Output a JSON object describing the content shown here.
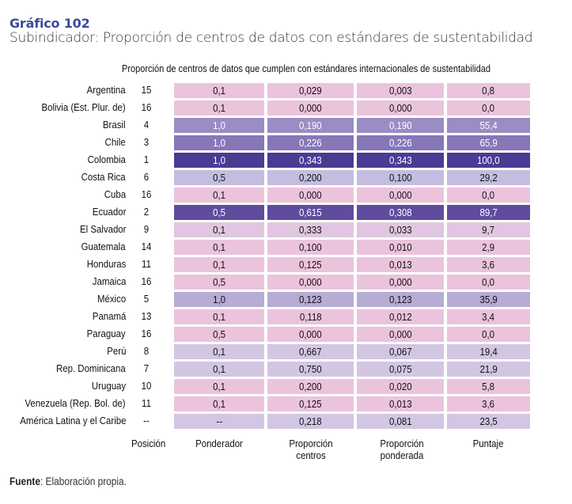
{
  "header": {
    "figure_label": "Gráfico 102",
    "subtitle": "Subindicador: Proporción de centros de datos con estándares de sustentabilidad"
  },
  "footer": {
    "source_label": "Fuente",
    "source_text": ": Elaboración propia."
  },
  "colors": {
    "title": "#3c4a9c",
    "pink": "#ebc3dd",
    "light_pink_lilac": "#e0c6e0",
    "lilac": "#d2c6e2",
    "light_violet": "#c4bddf",
    "mid_violet": "#b6acd4",
    "violet": "#9a8cc4",
    "deep_violet": "#8777b8",
    "dark_violet": "#5f4c9e",
    "darkest_violet": "#4a3b95"
  },
  "chart_data": {
    "type": "table",
    "title": "Proporción de centros de datos que cumplen con estándares internacionales de sustentabilidad",
    "columns": [
      "Posición",
      "Ponderador",
      "Proporción centros",
      "Proporción ponderada",
      "Puntaje"
    ],
    "rows": [
      {
        "country": "Argentina",
        "position": "15",
        "ponderador": "0,1",
        "proporcion_centros": "0,029",
        "proporcion_ponderada": "0,003",
        "puntaje": "0,8",
        "shade": "pink"
      },
      {
        "country": "Bolivia (Est. Plur. de)",
        "position": "16",
        "ponderador": "0,1",
        "proporcion_centros": "0,000",
        "proporcion_ponderada": "0,000",
        "puntaje": "0,0",
        "shade": "pink"
      },
      {
        "country": "Brasil",
        "position": "4",
        "ponderador": "1,0",
        "proporcion_centros": "0,190",
        "proporcion_ponderada": "0,190",
        "puntaje": "55,4",
        "shade": "violet"
      },
      {
        "country": "Chile",
        "position": "3",
        "ponderador": "1,0",
        "proporcion_centros": "0,226",
        "proporcion_ponderada": "0,226",
        "puntaje": "65,9",
        "shade": "deep_violet"
      },
      {
        "country": "Colombia",
        "position": "1",
        "ponderador": "1,0",
        "proporcion_centros": "0,343",
        "proporcion_ponderada": "0,343",
        "puntaje": "100,0",
        "shade": "darkest_violet"
      },
      {
        "country": "Costa Rica",
        "position": "6",
        "ponderador": "0,5",
        "proporcion_centros": "0,200",
        "proporcion_ponderada": "0,100",
        "puntaje": "29,2",
        "shade": "light_violet"
      },
      {
        "country": "Cuba",
        "position": "16",
        "ponderador": "0,1",
        "proporcion_centros": "0,000",
        "proporcion_ponderada": "0,000",
        "puntaje": "0,0",
        "shade": "pink"
      },
      {
        "country": "Ecuador",
        "position": "2",
        "ponderador": "0,5",
        "proporcion_centros": "0,615",
        "proporcion_ponderada": "0,308",
        "puntaje": "89,7",
        "shade": "dark_violet"
      },
      {
        "country": "El Salvador",
        "position": "9",
        "ponderador": "0,1",
        "proporcion_centros": "0,333",
        "proporcion_ponderada": "0,033",
        "puntaje": "9,7",
        "shade": "light_pink_lilac"
      },
      {
        "country": "Guatemala",
        "position": "14",
        "ponderador": "0,1",
        "proporcion_centros": "0,100",
        "proporcion_ponderada": "0,010",
        "puntaje": "2,9",
        "shade": "pink"
      },
      {
        "country": "Honduras",
        "position": "11",
        "ponderador": "0,1",
        "proporcion_centros": "0,125",
        "proporcion_ponderada": "0,013",
        "puntaje": "3,6",
        "shade": "pink"
      },
      {
        "country": "Jamaica",
        "position": "16",
        "ponderador": "0,5",
        "proporcion_centros": "0,000",
        "proporcion_ponderada": "0,000",
        "puntaje": "0,0",
        "shade": "pink"
      },
      {
        "country": "México",
        "position": "5",
        "ponderador": "1,0",
        "proporcion_centros": "0,123",
        "proporcion_ponderada": "0,123",
        "puntaje": "35,9",
        "shade": "mid_violet"
      },
      {
        "country": "Panamá",
        "position": "13",
        "ponderador": "0,1",
        "proporcion_centros": "0,118",
        "proporcion_ponderada": "0,012",
        "puntaje": "3,4",
        "shade": "pink"
      },
      {
        "country": "Paraguay",
        "position": "16",
        "ponderador": "0,5",
        "proporcion_centros": "0,000",
        "proporcion_ponderada": "0,000",
        "puntaje": "0,0",
        "shade": "pink"
      },
      {
        "country": "Perú",
        "position": "8",
        "ponderador": "0,1",
        "proporcion_centros": "0,667",
        "proporcion_ponderada": "0,067",
        "puntaje": "19,4",
        "shade": "lilac"
      },
      {
        "country": "Rep. Dominicana",
        "position": "7",
        "ponderador": "0,1",
        "proporcion_centros": "0,750",
        "proporcion_ponderada": "0,075",
        "puntaje": "21,9",
        "shade": "lilac"
      },
      {
        "country": "Uruguay",
        "position": "10",
        "ponderador": "0,1",
        "proporcion_centros": "0,200",
        "proporcion_ponderada": "0,020",
        "puntaje": "5,8",
        "shade": "pink"
      },
      {
        "country": "Venezuela (Rep. Bol. de)",
        "position": "11",
        "ponderador": "0,1",
        "proporcion_centros": "0,125",
        "proporcion_ponderada": "0,013",
        "puntaje": "3,6",
        "shade": "pink"
      },
      {
        "country": "América Latina y el Caribe",
        "position": "--",
        "ponderador": "--",
        "proporcion_centros": "0,218",
        "proporcion_ponderada": "0,081",
        "puntaje": "23,5",
        "shade": "lilac"
      }
    ]
  }
}
